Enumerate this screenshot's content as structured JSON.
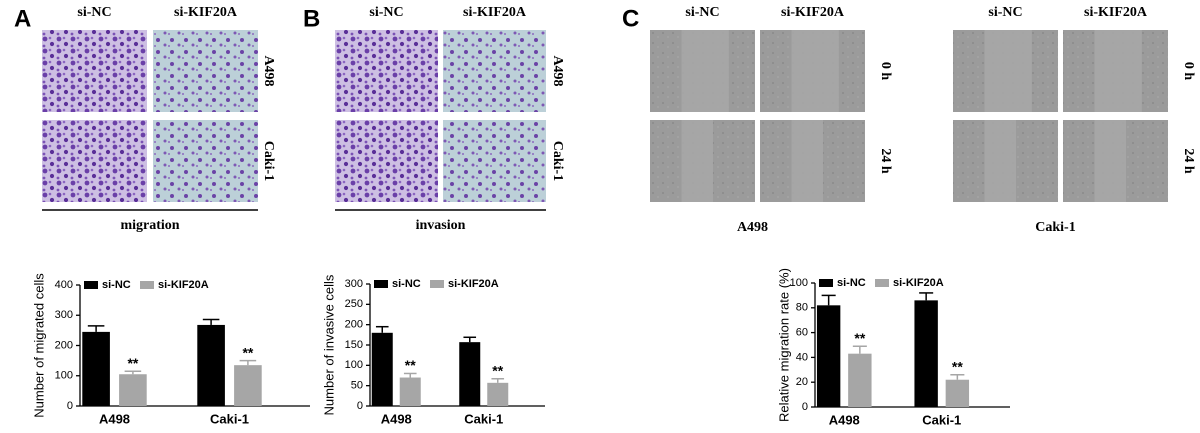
{
  "panels": [
    {
      "letter": "A",
      "groups": [
        {
          "columns": [
            "si-NC",
            "si-KIF20A"
          ],
          "rows": [
            "A498",
            "Caki-1"
          ],
          "caption": "migration"
        }
      ]
    },
    {
      "letter": "B",
      "groups": [
        {
          "columns": [
            "si-NC",
            "si-KIF20A"
          ],
          "rows": [
            "A498",
            "Caki-1"
          ],
          "caption": "invasion"
        }
      ]
    },
    {
      "letter": "C",
      "groups": [
        {
          "columns": [
            "si-NC",
            "si-KIF20A"
          ],
          "rows": [
            "0 h",
            "24 h"
          ],
          "caption": "A498"
        },
        {
          "columns": [
            "si-NC",
            "si-KIF20A"
          ],
          "rows": [
            "0 h",
            "24 h"
          ],
          "caption": "Caki-1"
        }
      ]
    }
  ],
  "chart_data": [
    {
      "type": "bar",
      "ylabel": "Number of migrated cells",
      "categories": [
        "A498",
        "Caki-1"
      ],
      "series": [
        {
          "name": "si-NC",
          "color": "#000000",
          "values": [
            245,
            268
          ],
          "errors": [
            20,
            18
          ]
        },
        {
          "name": "si-KIF20A",
          "color": "#a6a6a6",
          "values": [
            105,
            135
          ],
          "errors": [
            10,
            15
          ],
          "significance": [
            "**",
            "**"
          ]
        }
      ],
      "ylim": [
        0,
        400
      ],
      "yticks": [
        0,
        100,
        200,
        300,
        400
      ]
    },
    {
      "type": "bar",
      "ylabel": "Number of invasive cells",
      "categories": [
        "A498",
        "Caki-1"
      ],
      "series": [
        {
          "name": "si-NC",
          "color": "#000000",
          "values": [
            180,
            157
          ],
          "errors": [
            15,
            12
          ]
        },
        {
          "name": "si-KIF20A",
          "color": "#a6a6a6",
          "values": [
            70,
            57
          ],
          "errors": [
            10,
            10
          ],
          "significance": [
            "**",
            "**"
          ]
        }
      ],
      "ylim": [
        0,
        300
      ],
      "yticks": [
        0,
        50,
        100,
        150,
        200,
        250,
        300
      ]
    },
    {
      "type": "bar",
      "ylabel": "Relative migration rate (%)",
      "categories": [
        "A498",
        "Caki-1"
      ],
      "series": [
        {
          "name": "si-NC",
          "color": "#000000",
          "values": [
            82,
            86
          ],
          "errors": [
            8,
            6
          ]
        },
        {
          "name": "si-KIF20A",
          "color": "#a6a6a6",
          "values": [
            43,
            22
          ],
          "errors": [
            6,
            4
          ],
          "significance": [
            "**",
            "**"
          ]
        }
      ],
      "ylim": [
        0,
        100
      ],
      "yticks": [
        0,
        20,
        40,
        60,
        80,
        100
      ]
    }
  ]
}
